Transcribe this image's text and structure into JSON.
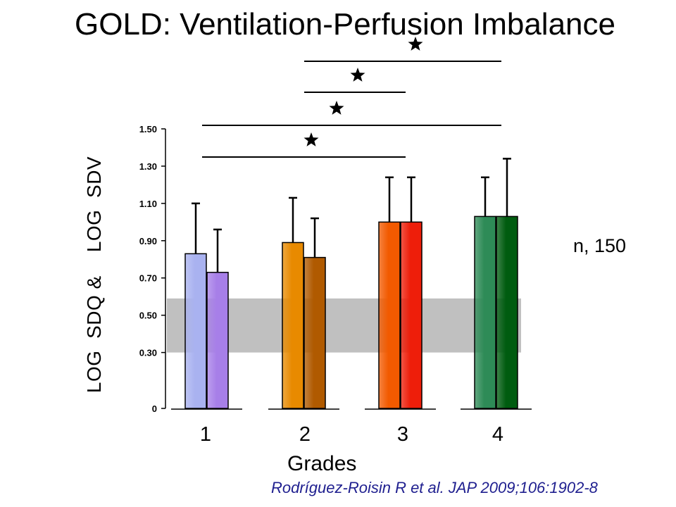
{
  "title": "GOLD: Ventilation-Perfusion Imbalance",
  "annotation": "n, 150",
  "citation": "Rodríguez-Roisin R et al. JAP 2009;106:1902-8",
  "chart_data": {
    "type": "bar",
    "title": "GOLD: Ventilation-Perfusion Imbalance",
    "xlabel": "Grades",
    "ylabel": "LOG  SDQ &    LOG  SDV",
    "categories": [
      "1",
      "2",
      "3",
      "4"
    ],
    "yticks": [
      "0",
      "0.30",
      "0.50",
      "0.70",
      "0.90",
      "1.10",
      "1.30",
      "1.50"
    ],
    "ytick_values": [
      0,
      0.3,
      0.5,
      0.7,
      0.9,
      1.1,
      1.3,
      1.5
    ],
    "ylim": [
      0,
      1.5
    ],
    "normal_range": [
      0.3,
      0.59
    ],
    "series": [
      {
        "values": [
          0.83,
          0.89,
          1.0,
          1.03
        ],
        "errors": [
          0.27,
          0.24,
          0.24,
          0.21
        ],
        "colors": [
          "#a9b2f0",
          "#e88a00",
          "#f25a00",
          "#2e8b57"
        ]
      },
      {
        "values": [
          0.73,
          0.81,
          1.0,
          1.03
        ],
        "errors": [
          0.23,
          0.21,
          0.24,
          0.31
        ],
        "colors": [
          "#a77fe8",
          "#b05a00",
          "#ee1e0a",
          "#005c10"
        ]
      }
    ],
    "significance": [
      {
        "from": "1",
        "to": "3",
        "level": 0.35
      },
      {
        "from": "1",
        "to": "4",
        "level": 0.19
      },
      {
        "from": "2",
        "to": "3",
        "level": 0.07
      },
      {
        "from": "2",
        "to": "4",
        "level": -0.02
      }
    ],
    "grid": false,
    "legend": "none"
  }
}
